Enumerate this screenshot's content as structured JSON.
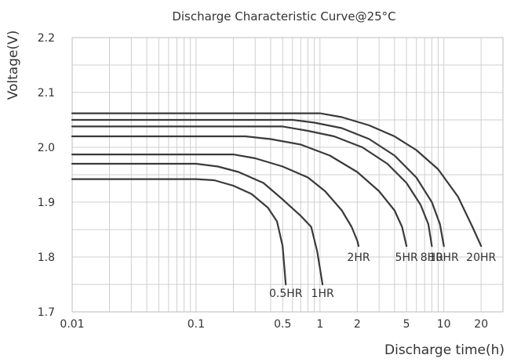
{
  "chart_data": {
    "type": "line",
    "title": "Discharge Characteristic Curve@25°C",
    "xlabel": "Discharge time(h)",
    "ylabel": "Voltage(V)",
    "x_scale": "log",
    "xlim": [
      0.01,
      30
    ],
    "ylim": [
      1.7,
      2.2
    ],
    "x_ticks": [
      {
        "value": 0.01,
        "label": "0.01"
      },
      {
        "value": 0.1,
        "label": "0.1"
      },
      {
        "value": 0.5,
        "label": "0.5"
      },
      {
        "value": 1,
        "label": "1"
      },
      {
        "value": 2,
        "label": "2"
      },
      {
        "value": 5,
        "label": "5"
      },
      {
        "value": 10,
        "label": "10"
      },
      {
        "value": 20,
        "label": "20"
      }
    ],
    "y_ticks": [
      {
        "value": 1.7,
        "label": "1.7"
      },
      {
        "value": 1.8,
        "label": "1.8"
      },
      {
        "value": 1.9,
        "label": "1.9"
      },
      {
        "value": 2.0,
        "label": "2.0"
      },
      {
        "value": 2.1,
        "label": "2.1"
      },
      {
        "value": 2.2,
        "label": "2.2"
      }
    ],
    "grid": true,
    "series": [
      {
        "name": "0.5HR",
        "points": [
          [
            0.01,
            1.942
          ],
          [
            0.1,
            1.942
          ],
          [
            0.14,
            1.94
          ],
          [
            0.2,
            1.93
          ],
          [
            0.28,
            1.915
          ],
          [
            0.38,
            1.89
          ],
          [
            0.45,
            1.865
          ],
          [
            0.5,
            1.82
          ],
          [
            0.53,
            1.75
          ]
        ]
      },
      {
        "name": "1HR",
        "points": [
          [
            0.01,
            1.97
          ],
          [
            0.1,
            1.97
          ],
          [
            0.15,
            1.965
          ],
          [
            0.22,
            1.955
          ],
          [
            0.35,
            1.935
          ],
          [
            0.5,
            1.905
          ],
          [
            0.7,
            1.875
          ],
          [
            0.85,
            1.855
          ],
          [
            0.95,
            1.81
          ],
          [
            1.05,
            1.75
          ]
        ]
      },
      {
        "name": "2HR",
        "points": [
          [
            0.01,
            1.987
          ],
          [
            0.2,
            1.987
          ],
          [
            0.3,
            1.98
          ],
          [
            0.5,
            1.965
          ],
          [
            0.8,
            1.945
          ],
          [
            1.1,
            1.92
          ],
          [
            1.5,
            1.885
          ],
          [
            1.8,
            1.855
          ],
          [
            2.0,
            1.83
          ],
          [
            2.05,
            1.82
          ]
        ]
      },
      {
        "name": "5HR",
        "points": [
          [
            0.01,
            2.02
          ],
          [
            0.25,
            2.02
          ],
          [
            0.4,
            2.015
          ],
          [
            0.7,
            2.005
          ],
          [
            1.2,
            1.985
          ],
          [
            2.0,
            1.955
          ],
          [
            3.0,
            1.92
          ],
          [
            4.0,
            1.885
          ],
          [
            4.6,
            1.855
          ],
          [
            5.0,
            1.82
          ]
        ]
      },
      {
        "name": "8HR",
        "points": [
          [
            0.01,
            2.038
          ],
          [
            0.5,
            2.038
          ],
          [
            0.8,
            2.03
          ],
          [
            1.3,
            2.02
          ],
          [
            2.2,
            2.0
          ],
          [
            3.5,
            1.97
          ],
          [
            5.0,
            1.935
          ],
          [
            6.5,
            1.895
          ],
          [
            7.5,
            1.86
          ],
          [
            8.0,
            1.82
          ]
        ]
      },
      {
        "name": "10HR",
        "points": [
          [
            0.01,
            2.05
          ],
          [
            0.6,
            2.05
          ],
          [
            0.9,
            2.045
          ],
          [
            1.5,
            2.035
          ],
          [
            2.5,
            2.015
          ],
          [
            4.0,
            1.985
          ],
          [
            6.0,
            1.945
          ],
          [
            8.0,
            1.9
          ],
          [
            9.3,
            1.86
          ],
          [
            10.0,
            1.82
          ]
        ]
      },
      {
        "name": "20HR",
        "points": [
          [
            0.01,
            2.062
          ],
          [
            1.0,
            2.062
          ],
          [
            1.5,
            2.055
          ],
          [
            2.5,
            2.04
          ],
          [
            4.0,
            2.02
          ],
          [
            6.0,
            1.995
          ],
          [
            9.0,
            1.96
          ],
          [
            13.0,
            1.91
          ],
          [
            17.0,
            1.855
          ],
          [
            20.0,
            1.82
          ]
        ]
      }
    ]
  }
}
